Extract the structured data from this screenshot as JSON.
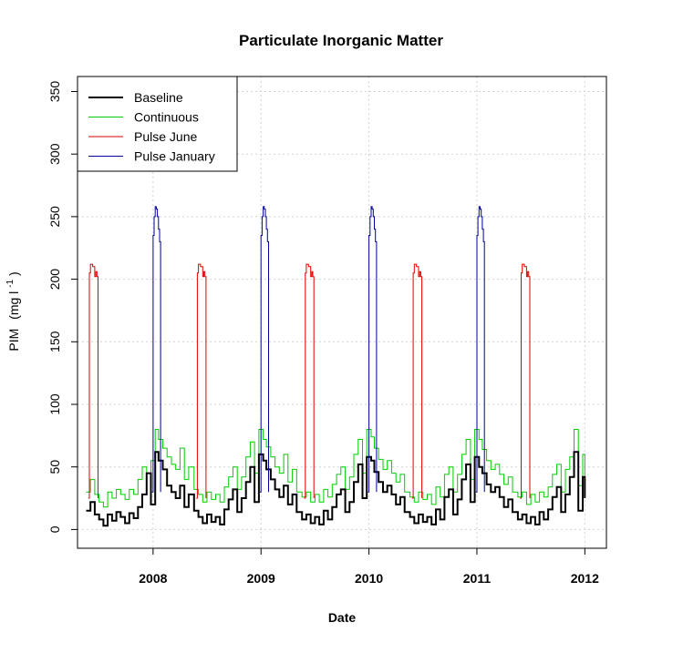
{
  "chart_data": {
    "type": "line",
    "title": "Particulate Inorganic Matter",
    "xlabel": "Date",
    "ylabel_main": "PIM",
    "ylabel_unit": "(mg l",
    "ylabel_exp": "-1",
    "ylabel_close": ")",
    "xlim": [
      2007.3,
      2012.2
    ],
    "ylim": [
      -15,
      362
    ],
    "x_ticks": [
      2008,
      2009,
      2010,
      2011,
      2012
    ],
    "x_tick_labels": [
      "2008",
      "2009",
      "2010",
      "2011",
      "2012"
    ],
    "y_ticks": [
      0,
      50,
      100,
      150,
      200,
      250,
      300,
      350
    ],
    "y_tick_labels": [
      "0",
      "50",
      "100",
      "150",
      "200",
      "250",
      "300",
      "350"
    ],
    "grid": true,
    "legend_position": "top-left",
    "series": [
      {
        "name": "Baseline",
        "color": "#000000",
        "width": 2,
        "x": [
          2007.38,
          2007.42,
          2007.46,
          2007.5,
          2007.54,
          2007.58,
          2007.62,
          2007.66,
          2007.7,
          2007.74,
          2007.78,
          2007.82,
          2007.86,
          2007.9,
          2007.94,
          2007.98,
          2008.02,
          2008.05,
          2008.09,
          2008.13,
          2008.17,
          2008.21,
          2008.25,
          2008.29,
          2008.33,
          2008.38,
          2008.42,
          2008.46,
          2008.5,
          2008.54,
          2008.58,
          2008.62,
          2008.66,
          2008.7,
          2008.74,
          2008.78,
          2008.82,
          2008.86,
          2008.9,
          2008.94,
          2008.98,
          2009.02,
          2009.05,
          2009.09,
          2009.13,
          2009.17,
          2009.21,
          2009.25,
          2009.29,
          2009.33,
          2009.38,
          2009.42,
          2009.46,
          2009.5,
          2009.54,
          2009.58,
          2009.62,
          2009.66,
          2009.7,
          2009.74,
          2009.78,
          2009.82,
          2009.86,
          2009.9,
          2009.94,
          2009.98,
          2010.02,
          2010.05,
          2010.09,
          2010.13,
          2010.17,
          2010.21,
          2010.25,
          2010.29,
          2010.33,
          2010.38,
          2010.42,
          2010.46,
          2010.5,
          2010.54,
          2010.58,
          2010.62,
          2010.66,
          2010.7,
          2010.74,
          2010.78,
          2010.82,
          2010.86,
          2010.9,
          2010.94,
          2010.98,
          2011.02,
          2011.05,
          2011.09,
          2011.13,
          2011.17,
          2011.21,
          2011.25,
          2011.29,
          2011.33,
          2011.38,
          2011.42,
          2011.46,
          2011.5,
          2011.54,
          2011.58,
          2011.62,
          2011.66,
          2011.7,
          2011.74,
          2011.78,
          2011.82,
          2011.86,
          2011.9,
          2011.94,
          2011.98,
          2012.0
        ],
        "y": [
          15,
          22,
          12,
          8,
          3,
          12,
          7,
          14,
          10,
          5,
          13,
          9,
          18,
          28,
          45,
          20,
          62,
          55,
          48,
          35,
          30,
          25,
          35,
          18,
          28,
          15,
          10,
          5,
          12,
          6,
          10,
          4,
          16,
          24,
          32,
          14,
          25,
          38,
          50,
          22,
          60,
          55,
          48,
          40,
          32,
          26,
          35,
          20,
          28,
          14,
          8,
          12,
          5,
          10,
          4,
          15,
          8,
          18,
          28,
          32,
          14,
          22,
          38,
          52,
          25,
          58,
          55,
          46,
          38,
          30,
          35,
          28,
          20,
          26,
          14,
          10,
          5,
          12,
          6,
          10,
          4,
          16,
          8,
          26,
          32,
          12,
          24,
          40,
          52,
          22,
          58,
          50,
          45,
          36,
          30,
          34,
          26,
          18,
          24,
          14,
          8,
          12,
          5,
          10,
          4,
          14,
          8,
          16,
          26,
          34,
          14,
          28,
          42,
          62,
          15,
          42,
          25
        ]
      },
      {
        "name": "Continuous",
        "color": "#00cc00",
        "width": 1,
        "x": [
          2007.38,
          2007.42,
          2007.46,
          2007.5,
          2007.54,
          2007.58,
          2007.62,
          2007.66,
          2007.7,
          2007.74,
          2007.78,
          2007.82,
          2007.86,
          2007.9,
          2007.94,
          2007.98,
          2008.02,
          2008.05,
          2008.09,
          2008.13,
          2008.17,
          2008.21,
          2008.25,
          2008.29,
          2008.33,
          2008.38,
          2008.42,
          2008.46,
          2008.5,
          2008.54,
          2008.58,
          2008.62,
          2008.66,
          2008.7,
          2008.74,
          2008.78,
          2008.82,
          2008.86,
          2008.9,
          2008.94,
          2008.98,
          2009.02,
          2009.05,
          2009.09,
          2009.13,
          2009.17,
          2009.21,
          2009.25,
          2009.29,
          2009.33,
          2009.38,
          2009.42,
          2009.46,
          2009.5,
          2009.54,
          2009.58,
          2009.62,
          2009.66,
          2009.7,
          2009.74,
          2009.78,
          2009.82,
          2009.86,
          2009.9,
          2009.94,
          2009.98,
          2010.02,
          2010.05,
          2010.09,
          2010.13,
          2010.17,
          2010.21,
          2010.25,
          2010.29,
          2010.33,
          2010.38,
          2010.42,
          2010.46,
          2010.5,
          2010.54,
          2010.58,
          2010.62,
          2010.66,
          2010.7,
          2010.74,
          2010.78,
          2010.82,
          2010.86,
          2010.9,
          2010.94,
          2010.98,
          2011.02,
          2011.05,
          2011.09,
          2011.13,
          2011.17,
          2011.21,
          2011.25,
          2011.29,
          2011.33,
          2011.38,
          2011.42,
          2011.46,
          2011.5,
          2011.54,
          2011.58,
          2011.62,
          2011.66,
          2011.7,
          2011.74,
          2011.78,
          2011.82,
          2011.86,
          2011.9,
          2011.94,
          2011.98,
          2012.0
        ],
        "y": [
          30,
          40,
          28,
          22,
          18,
          30,
          25,
          32,
          28,
          24,
          32,
          28,
          40,
          50,
          45,
          55,
          80,
          72,
          65,
          58,
          52,
          48,
          65,
          40,
          50,
          32,
          28,
          22,
          30,
          24,
          28,
          22,
          34,
          42,
          50,
          32,
          42,
          58,
          70,
          45,
          80,
          72,
          66,
          58,
          50,
          45,
          60,
          38,
          48,
          30,
          26,
          30,
          22,
          28,
          22,
          32,
          26,
          36,
          44,
          50,
          32,
          42,
          60,
          72,
          45,
          80,
          74,
          65,
          56,
          48,
          55,
          45,
          38,
          44,
          30,
          26,
          22,
          30,
          24,
          28,
          20,
          34,
          26,
          44,
          50,
          30,
          44,
          60,
          72,
          40,
          80,
          72,
          64,
          55,
          48,
          52,
          44,
          36,
          42,
          30,
          26,
          30,
          20,
          28,
          22,
          30,
          26,
          34,
          44,
          52,
          30,
          48,
          58,
          80,
          35,
          60,
          42
        ]
      },
      {
        "name": "Pulse June",
        "color": "#e00000",
        "width": 1,
        "pulses": [
          {
            "x": [
              2007.4,
              2007.41,
              2007.42,
              2007.44,
              2007.46,
              2007.47,
              2007.48,
              2007.49
            ],
            "y": [
              25,
              205,
              212,
              210,
              202,
              206,
              202,
              25
            ]
          },
          {
            "x": [
              2008.4,
              2008.41,
              2008.42,
              2008.44,
              2008.46,
              2008.47,
              2008.48,
              2008.49
            ],
            "y": [
              25,
              205,
              212,
              210,
              202,
              206,
              202,
              25
            ]
          },
          {
            "x": [
              2009.4,
              2009.41,
              2009.42,
              2009.44,
              2009.46,
              2009.47,
              2009.48,
              2009.49
            ],
            "y": [
              25,
              205,
              212,
              210,
              202,
              206,
              202,
              25
            ]
          },
          {
            "x": [
              2010.4,
              2010.41,
              2010.42,
              2010.44,
              2010.46,
              2010.47,
              2010.48,
              2010.49
            ],
            "y": [
              25,
              205,
              212,
              210,
              202,
              206,
              202,
              25
            ]
          },
          {
            "x": [
              2011.4,
              2011.41,
              2011.42,
              2011.44,
              2011.46,
              2011.47,
              2011.48,
              2011.49
            ],
            "y": [
              25,
              205,
              212,
              210,
              202,
              206,
              202,
              25
            ]
          }
        ]
      },
      {
        "name": "Pulse January",
        "color": "#000099",
        "width": 1,
        "pulses": [
          {
            "x": [
              2007.99,
              2008.0,
              2008.01,
              2008.02,
              2008.03,
              2008.04,
              2008.05,
              2008.06,
              2008.07
            ],
            "y": [
              30,
              235,
              250,
              258,
              256,
              250,
              240,
              230,
              30
            ]
          },
          {
            "x": [
              2008.99,
              2009.0,
              2009.01,
              2009.02,
              2009.03,
              2009.04,
              2009.05,
              2009.06,
              2009.07
            ],
            "y": [
              30,
              235,
              250,
              258,
              256,
              250,
              240,
              230,
              30
            ]
          },
          {
            "x": [
              2009.99,
              2010.0,
              2010.01,
              2010.02,
              2010.03,
              2010.04,
              2010.05,
              2010.06,
              2010.07
            ],
            "y": [
              30,
              235,
              250,
              258,
              256,
              250,
              240,
              230,
              30
            ]
          },
          {
            "x": [
              2010.99,
              2011.0,
              2011.01,
              2011.02,
              2011.03,
              2011.04,
              2011.05,
              2011.06,
              2011.07
            ],
            "y": [
              30,
              235,
              250,
              258,
              256,
              250,
              240,
              230,
              30
            ]
          }
        ]
      }
    ]
  }
}
